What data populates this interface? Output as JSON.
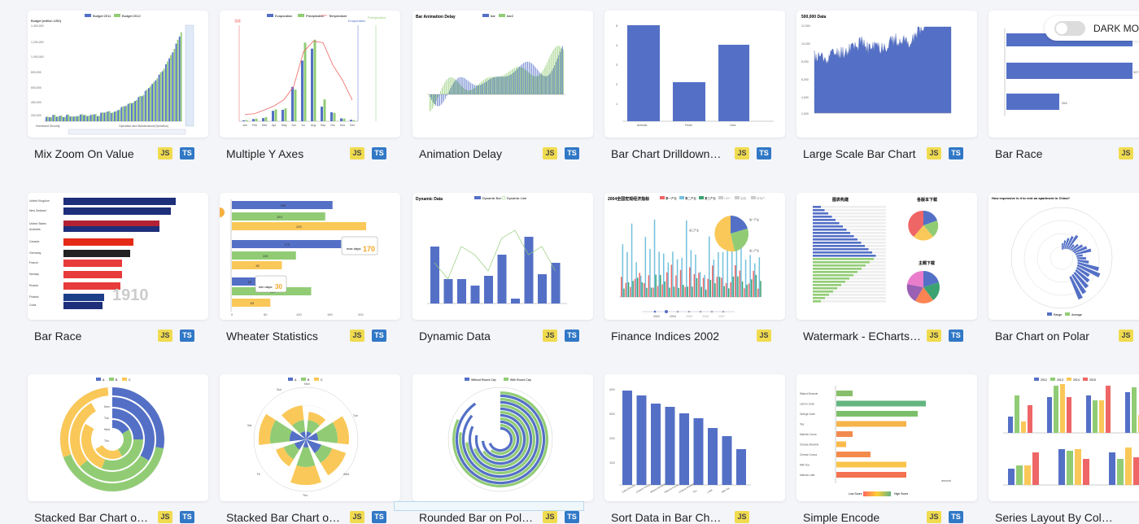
{
  "theme_toggle": {
    "label": "DARK MOD"
  },
  "badges": {
    "js": "JS",
    "ts": "TS"
  },
  "colors": {
    "blue": "#5470c6",
    "green": "#91cc75",
    "yellow": "#fac858",
    "red": "#ee6666",
    "teal": "#73c0de",
    "js_badge": "#f0db4f",
    "ts_badge": "#3178c6"
  },
  "cards": [
    {
      "title": "Mix Zoom On Value",
      "js": true,
      "ts": true,
      "legend": [
        "Budget 2011",
        "Budget 2012"
      ],
      "ylabel": "Budget (million USD)",
      "yticks": [
        "1,400,000",
        "1,200,000",
        "1,000,000",
        "800,000",
        "600,000",
        "400,000",
        "200,000"
      ],
      "xlabels": [
        "Homeland Security",
        "Operation and Maintenance(Operation)"
      ]
    },
    {
      "title": "Multiple Y Axes",
      "js": true,
      "ts": true,
      "legend": [
        "Evaporation",
        "Precipitation",
        "Temperature"
      ],
      "axis_names": [
        "温度",
        "Evaporation",
        "Precipitation"
      ],
      "months": [
        "Jan",
        "Feb",
        "Mar",
        "Apr",
        "May",
        "Jun",
        "Jul",
        "Aug",
        "Sep",
        "Oct",
        "Nov",
        "Dec"
      ]
    },
    {
      "title": "Animation Delay",
      "js": true,
      "ts": true,
      "chart_title": "Bar Animation Delay",
      "legend": [
        "bar",
        "bar2"
      ]
    },
    {
      "title": "Bar Chart Drilldown…",
      "js": true,
      "ts": true,
      "categories": [
        "Animals",
        "Fruits",
        "Cars"
      ],
      "yticks": [
        "5",
        "4",
        "3",
        "2",
        "1"
      ]
    },
    {
      "title": "Large Scale Bar Chart",
      "js": true,
      "ts": true,
      "chart_title": "500,000 Data",
      "yticks": [
        "12,000",
        "10,000",
        "8,000",
        "6,000",
        "4,000",
        "2,000"
      ]
    },
    {
      "title": "Bar Race",
      "js": false,
      "ts": false,
      "values": [
        "327",
        "264"
      ]
    },
    {
      "title": "Bar Race",
      "js": true,
      "ts": true,
      "year": "1910",
      "countries": [
        "United Kingdom",
        "New Zealand",
        "United States",
        "Australia",
        "Canada",
        "Germany",
        "France",
        "Norway",
        "Russia",
        "Finland",
        "Cuba"
      ]
    },
    {
      "title": "Wheater Statistics",
      "js": true,
      "ts": true,
      "bar_values": [
        "165",
        "153",
        "220",
        "179",
        "105",
        "82",
        "55",
        "130",
        "63"
      ],
      "max_label": "max days:",
      "max_value": "170",
      "min_label": "min days:",
      "min_value": "30",
      "xticks": [
        "0",
        "50",
        "100",
        "150",
        "200"
      ]
    },
    {
      "title": "Dynamic Data",
      "js": true,
      "ts": true,
      "chart_title": "Dynamic Data",
      "legend": [
        "Dynamic Bar",
        "Dynamic Line"
      ]
    },
    {
      "title": "Finance Indices 2002",
      "js": true,
      "ts": false,
      "chart_title": "2004全国宏观经济指标",
      "legend": [
        "第一产业",
        "第二产业",
        "第三产业",
        "GDP",
        "金融",
        "房地产"
      ],
      "timeline": [
        "2002",
        "2004",
        "2005",
        "2006",
        "2007"
      ],
      "pie_labels": [
        "第一产业",
        "第二产业",
        "第三产业"
      ]
    },
    {
      "title": "Watermark - ECharts…",
      "js": true,
      "ts": true,
      "sections": [
        "图表构建",
        "各版本下载",
        "主题下载"
      ]
    },
    {
      "title": "Bar Chart on Polar",
      "js": false,
      "ts": false,
      "chart_title": "How expensive is it to rent an apartment in China?",
      "legend": [
        "Range",
        "Average"
      ]
    },
    {
      "title": "Stacked Bar Chart o…",
      "js": true,
      "ts": true,
      "legend": [
        "A",
        "B",
        "C"
      ],
      "labels": [
        "Mon",
        "Tue",
        "Wed",
        "Thu"
      ]
    },
    {
      "title": "Stacked Bar Chart o…",
      "js": true,
      "ts": true,
      "legend": [
        "A",
        "B",
        "C"
      ],
      "labels": [
        "Mon",
        "Tue",
        "Wed",
        "Thu",
        "Fri",
        "Sat",
        "Sun"
      ]
    },
    {
      "title": "Rounded Bar on Pol…",
      "js": true,
      "ts": true,
      "legend": [
        "Without Round Cap",
        "With Round Cap"
      ]
    },
    {
      "title": "Sort Data in Bar Ch…",
      "js": true,
      "ts": false,
      "yticks": [
        "400",
        "300",
        "200",
        "100"
      ],
      "names": [
        "Cake Dessert",
        "Cheese Cocoa",
        "Walnut Brownie",
        "Matcha Cocoa",
        "Cheese Brownie",
        "Tea",
        "Latte",
        "Milk Tea"
      ]
    },
    {
      "title": "Simple Encode",
      "js": true,
      "ts": true,
      "names": [
        "Walnut Brownie",
        "Lemon Juice",
        "Orange Juice",
        "Tea",
        "Matcha Cocoa",
        "Cheese Brownie",
        "Cheese Cocoa",
        "Milk Tea",
        "Matcha Latte"
      ],
      "visual_map": [
        "Low Score",
        "High Score"
      ],
      "xlabel": "amount"
    },
    {
      "title": "Series Layout By Col…",
      "js": true,
      "ts": true,
      "legend": [
        "2012",
        "2013",
        "2014",
        "2015"
      ]
    }
  ]
}
